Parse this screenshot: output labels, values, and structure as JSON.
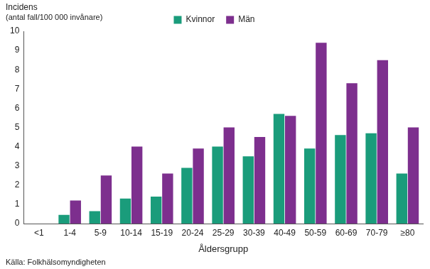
{
  "chart_data": {
    "type": "bar",
    "ylabel": "Incidens\n(antal fall/100 000 invånare)",
    "xlabel": "Åldersgrupp",
    "source": "Källa: Folkhälsomyndigheten",
    "categories": [
      "<1",
      "1-4",
      "5-9",
      "10-14",
      "15-19",
      "20-24",
      "25-29",
      "30-39",
      "40-49",
      "50-59",
      "60-69",
      "70-79",
      "≥80"
    ],
    "series": [
      {
        "name": "Kvinnor",
        "color": "#1a9c7b",
        "values": [
          0,
          0.45,
          0.65,
          1.3,
          1.4,
          2.9,
          4.0,
          3.5,
          5.7,
          3.9,
          4.6,
          4.7,
          2.6
        ]
      },
      {
        "name": "Män",
        "color": "#7d2f8e",
        "values": [
          0,
          1.2,
          2.5,
          4.0,
          2.6,
          3.9,
          5.0,
          4.5,
          5.6,
          9.4,
          7.3,
          8.5,
          5.0
        ]
      }
    ],
    "ylim": [
      0,
      10
    ],
    "yticks": [
      0,
      1,
      2,
      3,
      4,
      5,
      6,
      7,
      8,
      9,
      10
    ],
    "grid": false,
    "legend": "top"
  }
}
